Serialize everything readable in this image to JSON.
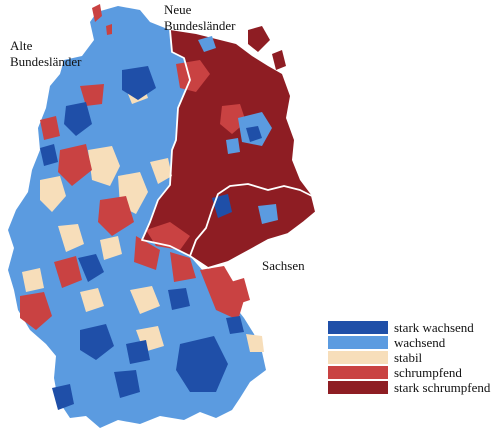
{
  "labels": {
    "neue": [
      "Neue",
      "Bundesländer"
    ],
    "alte": [
      "Alte",
      "Bundesländer"
    ],
    "sachsen": "Sachsen"
  },
  "colors": {
    "stark_wachsend": "#1f4fa8",
    "wachsend": "#5b9be0",
    "stabil": "#f7deba",
    "schrumpfend": "#c94242",
    "stark_schrumpfend": "#8e1d23",
    "border": "#ffffff"
  },
  "legend": [
    {
      "label": "stark wachsend",
      "color": "#1f4fa8"
    },
    {
      "label": "wachsend",
      "color": "#5b9be0"
    },
    {
      "label": "stabil",
      "color": "#f7deba"
    },
    {
      "label": "schrumpfend",
      "color": "#c94242"
    },
    {
      "label": "stark schrumpfend",
      "color": "#8e1d23"
    }
  ]
}
